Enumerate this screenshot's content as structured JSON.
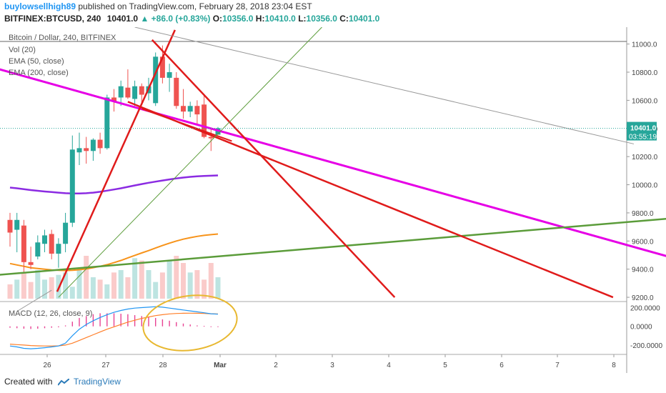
{
  "header": {
    "author": "buylowsellhigh89",
    "published": "published on TradingView.com, February 28, 2018 23:04 EST",
    "symbol": "BITFINEX:BTCUSD, 240",
    "last": "10401.0",
    "change": "▲ +86.0 (+0.83%)",
    "o_label": "O:",
    "o_value": "10356.0",
    "h_label": "H:",
    "h_value": "10410.0",
    "l_label": "L:",
    "l_value": "10356.0",
    "c_label": "C:",
    "c_value": "10401.0"
  },
  "legend": {
    "title": "Bitcoin / Dollar, 240, BITFINEX",
    "vol": "Vol (20)",
    "ema50": "EMA (50, close)",
    "ema200": "EMA (200, close)",
    "macd": "MACD (12, 26, close, 9)"
  },
  "footer": {
    "created_with": "Created with",
    "brand": "TradingView"
  },
  "colors": {
    "up": "#26a69a",
    "down": "#ef5350",
    "ema50": "#f7931a",
    "ema200": "#8b2be2",
    "trend_red": "#e01b1b",
    "trend_magenta": "#e600e6",
    "trend_green": "#5b9c3a",
    "macd_line": "#2196f3",
    "signal_line": "#ff7f2a"
  },
  "chart_data": {
    "type": "candlestick",
    "symbol": "BTCUSD",
    "interval": "240",
    "ylim": [
      9180,
      11120
    ],
    "y_ticks": [
      "9200.0",
      "9400.0",
      "9600.0",
      "9800.0",
      "10000.0",
      "10200.0",
      "10400.0",
      "10600.0",
      "10800.0",
      "11000.0"
    ],
    "x_ticks": [
      "26",
      "27",
      "28",
      "Mar",
      "2",
      "3",
      "4",
      "5",
      "6",
      "7",
      "8"
    ],
    "last_price_label": "10401.0",
    "countdown_label": "03:55:19",
    "candles": [
      {
        "o": 9750,
        "h": 9800,
        "l": 9560,
        "c": 9660
      },
      {
        "o": 9680,
        "h": 9800,
        "l": 9520,
        "c": 9750
      },
      {
        "o": 9710,
        "h": 9750,
        "l": 9380,
        "c": 9450
      },
      {
        "o": 9450,
        "h": 9560,
        "l": 9400,
        "c": 9430
      },
      {
        "o": 9490,
        "h": 9640,
        "l": 9470,
        "c": 9590
      },
      {
        "o": 9580,
        "h": 9680,
        "l": 9520,
        "c": 9640
      },
      {
        "o": 9650,
        "h": 9680,
        "l": 9470,
        "c": 9510
      },
      {
        "o": 9510,
        "h": 9620,
        "l": 9410,
        "c": 9580
      },
      {
        "o": 9580,
        "h": 9800,
        "l": 9520,
        "c": 9730
      },
      {
        "o": 9730,
        "h": 10350,
        "l": 9700,
        "c": 10250
      },
      {
        "o": 10230,
        "h": 10370,
        "l": 10140,
        "c": 10260
      },
      {
        "o": 10260,
        "h": 10340,
        "l": 10150,
        "c": 10240
      },
      {
        "o": 10240,
        "h": 10330,
        "l": 10170,
        "c": 10320
      },
      {
        "o": 10320,
        "h": 10370,
        "l": 10220,
        "c": 10260
      },
      {
        "o": 10260,
        "h": 10640,
        "l": 10250,
        "c": 10620
      },
      {
        "o": 10620,
        "h": 10680,
        "l": 10520,
        "c": 10590
      },
      {
        "o": 10620,
        "h": 10740,
        "l": 10560,
        "c": 10700
      },
      {
        "o": 10690,
        "h": 10820,
        "l": 10610,
        "c": 10620
      },
      {
        "o": 10610,
        "h": 10740,
        "l": 10560,
        "c": 10700
      },
      {
        "o": 10700,
        "h": 10720,
        "l": 10580,
        "c": 10640
      },
      {
        "o": 10650,
        "h": 10760,
        "l": 10600,
        "c": 10700
      },
      {
        "o": 10580,
        "h": 10940,
        "l": 10560,
        "c": 10910
      },
      {
        "o": 10910,
        "h": 10990,
        "l": 10720,
        "c": 10760
      },
      {
        "o": 10760,
        "h": 10860,
        "l": 10660,
        "c": 10800
      },
      {
        "o": 10760,
        "h": 10800,
        "l": 10540,
        "c": 10560
      },
      {
        "o": 10560,
        "h": 10680,
        "l": 10470,
        "c": 10520
      },
      {
        "o": 10520,
        "h": 10590,
        "l": 10480,
        "c": 10560
      },
      {
        "o": 10560,
        "h": 10600,
        "l": 10420,
        "c": 10500
      },
      {
        "o": 10570,
        "h": 10640,
        "l": 10330,
        "c": 10340
      },
      {
        "o": 10340,
        "h": 10400,
        "l": 10240,
        "c": 10330
      },
      {
        "o": 10356,
        "h": 10410,
        "l": 10356,
        "c": 10401
      }
    ],
    "volume": [
      30,
      40,
      55,
      35,
      60,
      40,
      45,
      50,
      55,
      25,
      65,
      90,
      45,
      40,
      30,
      55,
      60,
      45,
      85,
      80,
      60,
      35,
      55,
      80,
      90,
      75,
      55,
      60,
      40,
      75,
      45
    ],
    "ema50": [
      9440,
      9430,
      9420,
      9410,
      9405,
      9400,
      9395,
      9392,
      9390,
      9392,
      9396,
      9402,
      9410,
      9420,
      9432,
      9446,
      9462,
      9480,
      9498,
      9515,
      9532,
      9550,
      9568,
      9585,
      9600,
      9613,
      9624,
      9633,
      9640,
      9645,
      9650
    ],
    "ema200": [
      9980,
      9975,
      9968,
      9962,
      9957,
      9952,
      9948,
      9944,
      9940,
      9938,
      9938,
      9940,
      9944,
      9950,
      9958,
      9966,
      9975,
      9985,
      9995,
      10005,
      10014,
      10022,
      10030,
      10038,
      10045,
      10051,
      10056,
      10060,
      10062,
      10064,
      10066
    ],
    "macd_ylim": [
      -300,
      250
    ],
    "macd_ticks": [
      "200.0000",
      "0.0000",
      "-200.0000"
    ],
    "macd_line": [
      -210,
      -220,
      -235,
      -240,
      -235,
      -228,
      -220,
      -210,
      -180,
      -100,
      -30,
      20,
      60,
      95,
      125,
      150,
      170,
      185,
      195,
      200,
      205,
      210,
      205,
      195,
      185,
      175,
      165,
      155,
      145,
      135,
      130
    ],
    "signal_line": [
      -190,
      -195,
      -200,
      -205,
      -208,
      -210,
      -210,
      -208,
      -200,
      -180,
      -150,
      -120,
      -90,
      -60,
      -30,
      -5,
      20,
      45,
      65,
      85,
      100,
      115,
      125,
      133,
      138,
      140,
      141,
      140,
      138,
      135,
      132
    ],
    "macd_hist": [
      -15,
      -20,
      -25,
      -28,
      -25,
      -20,
      -15,
      -10,
      10,
      50,
      90,
      110,
      130,
      140,
      140,
      140,
      135,
      130,
      120,
      110,
      100,
      90,
      75,
      60,
      45,
      30,
      20,
      10,
      5,
      0,
      -2
    ]
  }
}
